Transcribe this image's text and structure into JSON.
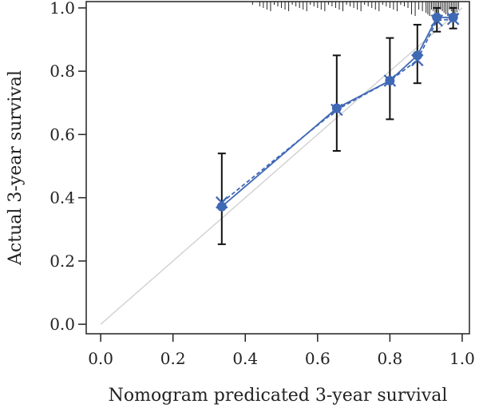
{
  "chart_data": {
    "type": "line",
    "xlabel": "Nomogram predicated 3-year survival",
    "ylabel": "Actual 3-year survival",
    "xlim": [
      -0.04,
      1.02
    ],
    "ylim": [
      -0.03,
      1.02
    ],
    "x_ticks": [
      "0.0",
      "0.2",
      "0.4",
      "0.6",
      "0.8",
      "1.0"
    ],
    "y_ticks": [
      "0.0",
      "0.2",
      "0.4",
      "0.6",
      "0.8",
      "1.0"
    ],
    "grid": false,
    "reference_line": {
      "from": [
        0,
        0
      ],
      "to": [
        1,
        1
      ],
      "color": "#d3d3d3"
    },
    "series": [
      {
        "marker": "circle",
        "color": "#3f68b5",
        "points": [
          {
            "x": 0.335,
            "y": 0.372,
            "lower": 0.253,
            "upper": 0.54
          },
          {
            "x": 0.653,
            "y": 0.683,
            "lower": 0.548,
            "upper": 0.85
          },
          {
            "x": 0.8,
            "y": 0.77,
            "lower": 0.648,
            "upper": 0.905
          },
          {
            "x": 0.876,
            "y": 0.85,
            "lower": 0.762,
            "upper": 0.947
          },
          {
            "x": 0.93,
            "y": 0.97,
            "lower": 0.925,
            "upper": 1.0
          },
          {
            "x": 0.975,
            "y": 0.97,
            "lower": 0.935,
            "upper": 1.0
          }
        ]
      },
      {
        "marker": "x",
        "color": "#3f68b5",
        "dashed": true,
        "points": [
          {
            "x": 0.335,
            "y": 0.385
          },
          {
            "x": 0.653,
            "y": 0.678
          },
          {
            "x": 0.8,
            "y": 0.77
          },
          {
            "x": 0.876,
            "y": 0.835
          },
          {
            "x": 0.93,
            "y": 0.96
          },
          {
            "x": 0.975,
            "y": 0.965
          }
        ]
      }
    ],
    "rug_x": [
      0.42,
      0.44,
      0.45,
      0.46,
      0.47,
      0.48,
      0.49,
      0.5,
      0.51,
      0.52,
      0.53,
      0.54,
      0.55,
      0.56,
      0.57,
      0.58,
      0.59,
      0.6,
      0.61,
      0.62,
      0.63,
      0.64,
      0.65,
      0.66,
      0.67,
      0.68,
      0.69,
      0.7,
      0.71,
      0.72,
      0.73,
      0.74,
      0.75,
      0.76,
      0.77,
      0.78,
      0.79,
      0.8,
      0.81,
      0.82,
      0.83,
      0.84,
      0.85,
      0.86,
      0.87,
      0.88,
      0.89,
      0.9,
      0.905,
      0.91,
      0.915,
      0.92,
      0.925,
      0.93,
      0.935,
      0.94,
      0.945,
      0.95,
      0.955,
      0.96,
      0.965,
      0.97,
      0.975,
      0.98,
      0.985,
      0.99
    ]
  }
}
